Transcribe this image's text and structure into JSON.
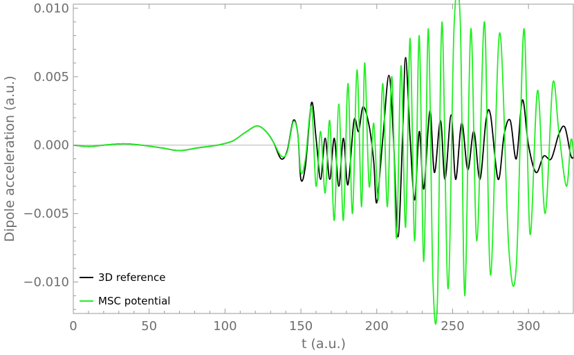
{
  "chart_data": {
    "type": "line",
    "title": "",
    "xlabel": "t (a.u.)",
    "ylabel": "Dipole acceleration (a.u.)",
    "xlim": [
      0,
      330
    ],
    "ylim": [
      -0.0123,
      0.0103
    ],
    "x_ticks": [
      0,
      50,
      100,
      150,
      200,
      250,
      300
    ],
    "y_ticks": [
      0.01,
      0.005,
      0.0,
      -0.005,
      -0.01
    ],
    "x_tick_labels": [
      "0",
      "50",
      "100",
      "150",
      "200",
      "250",
      "300"
    ],
    "y_tick_labels": [
      "0.010",
      "0.005",
      "0.000",
      "−0.005",
      "−0.010"
    ],
    "grid": false,
    "legend_position": "bottom-left",
    "series": [
      {
        "name": "3D reference",
        "color": "#000000",
        "points": [
          [
            0,
            0.0
          ],
          [
            10,
            -0.0001
          ],
          [
            20,
            0.0
          ],
          [
            33,
            0.0001
          ],
          [
            45,
            0.0
          ],
          [
            58,
            -0.0002
          ],
          [
            70,
            -0.0004
          ],
          [
            82,
            -0.0002
          ],
          [
            95,
            0.0
          ],
          [
            105,
            0.0003
          ],
          [
            113,
            0.0009
          ],
          [
            121,
            0.0014
          ],
          [
            127,
            0.001
          ],
          [
            132,
            0.0002
          ],
          [
            137,
            -0.001
          ],
          [
            141,
            -0.0004
          ],
          [
            145,
            0.0018
          ],
          [
            148,
            0.0008
          ],
          [
            150,
            -0.0025
          ],
          [
            153,
            -0.0015
          ],
          [
            157,
            0.0031
          ],
          [
            160,
            0.0005
          ],
          [
            163,
            -0.0025
          ],
          [
            166,
            0.0005
          ],
          [
            169,
            -0.0025
          ],
          [
            172,
            0.0005
          ],
          [
            175,
            -0.003
          ],
          [
            178,
            0.0005
          ],
          [
            181,
            -0.0029
          ],
          [
            185,
            0.0018
          ],
          [
            188,
            0.001
          ],
          [
            191,
            0.0028
          ],
          [
            195,
            0.0014
          ],
          [
            198,
            -0.0012
          ],
          [
            200,
            -0.0042
          ],
          [
            204,
            0.0005
          ],
          [
            208,
            0.0051
          ],
          [
            211,
            0.0005
          ],
          [
            214,
            -0.0067
          ],
          [
            217,
            0.0005
          ],
          [
            219,
            0.0064
          ],
          [
            222,
            0.0005
          ],
          [
            225,
            -0.004
          ],
          [
            228,
            0.001
          ],
          [
            231,
            -0.0032
          ],
          [
            235,
            0.0025
          ],
          [
            238,
            -0.002
          ],
          [
            242,
            0.0018
          ],
          [
            245,
            -0.0025
          ],
          [
            249,
            0.0022
          ],
          [
            252,
            -0.0025
          ],
          [
            256,
            0.0016
          ],
          [
            260,
            -0.0018
          ],
          [
            264,
            0.001
          ],
          [
            268,
            -0.0025
          ],
          [
            272,
            0.0018
          ],
          [
            275,
            0.0022
          ],
          [
            280,
            -0.0025
          ],
          [
            284,
            0.0008
          ],
          [
            288,
            0.0018
          ],
          [
            292,
            -0.001
          ],
          [
            296,
            0.0033
          ],
          [
            300,
            0.0
          ],
          [
            305,
            -0.002
          ],
          [
            310,
            -0.0008
          ],
          [
            315,
            -0.001
          ],
          [
            320,
            0.0008
          ],
          [
            324,
            0.0013
          ],
          [
            328,
            -0.0008
          ],
          [
            330,
            -0.0008
          ]
        ]
      },
      {
        "name": "MSC potential",
        "color": "#22ee22",
        "points": [
          [
            0,
            0.0
          ],
          [
            10,
            -0.0001
          ],
          [
            20,
            0.0
          ],
          [
            33,
            0.0001
          ],
          [
            45,
            0.0
          ],
          [
            58,
            -0.0002
          ],
          [
            70,
            -0.0004
          ],
          [
            82,
            -0.0002
          ],
          [
            95,
            0.0
          ],
          [
            105,
            0.0003
          ],
          [
            113,
            0.0009
          ],
          [
            121,
            0.0014
          ],
          [
            127,
            0.001
          ],
          [
            132,
            0.0002
          ],
          [
            137,
            -0.0008
          ],
          [
            141,
            -0.0005
          ],
          [
            145,
            0.0017
          ],
          [
            148,
            0.0008
          ],
          [
            150,
            -0.002
          ],
          [
            153,
            -0.001
          ],
          [
            157,
            0.0028
          ],
          [
            160,
            -0.003
          ],
          [
            163,
            0.001
          ],
          [
            166,
            -0.0035
          ],
          [
            169,
            0.0018
          ],
          [
            172,
            -0.0055
          ],
          [
            175,
            0.003
          ],
          [
            178,
            -0.0055
          ],
          [
            181,
            0.0045
          ],
          [
            184,
            -0.005
          ],
          [
            187,
            0.0055
          ],
          [
            190,
            -0.0045
          ],
          [
            192,
            0.006
          ],
          [
            195,
            -0.003
          ],
          [
            198,
            0.0016
          ],
          [
            201,
            -0.004
          ],
          [
            204,
            0.0045
          ],
          [
            207,
            -0.0045
          ],
          [
            210,
            0.005
          ],
          [
            213,
            -0.0068
          ],
          [
            216,
            0.0058
          ],
          [
            219,
            -0.006
          ],
          [
            222,
            0.0078
          ],
          [
            225,
            -0.007
          ],
          [
            228,
            0.008
          ],
          [
            231,
            -0.0085
          ],
          [
            234,
            0.0085
          ],
          [
            237,
            -0.0098
          ],
          [
            240,
            -0.0113
          ],
          [
            243,
            0.009
          ],
          [
            247,
            -0.0105
          ],
          [
            251,
            0.0088
          ],
          [
            255,
            0.0092
          ],
          [
            258,
            -0.011
          ],
          [
            262,
            0.0085
          ],
          [
            266,
            -0.007
          ],
          [
            271,
            0.009
          ],
          [
            275,
            -0.0095
          ],
          [
            281,
            0.0082
          ],
          [
            287,
            -0.0075
          ],
          [
            292,
            -0.0088
          ],
          [
            297,
            0.0085
          ],
          [
            301,
            -0.0065
          ],
          [
            306,
            0.004
          ],
          [
            311,
            -0.005
          ],
          [
            316,
            0.0045
          ],
          [
            320,
            0.001
          ],
          [
            325,
            -0.003
          ],
          [
            328,
            0.0004
          ],
          [
            330,
            -0.001
          ]
        ]
      }
    ]
  }
}
